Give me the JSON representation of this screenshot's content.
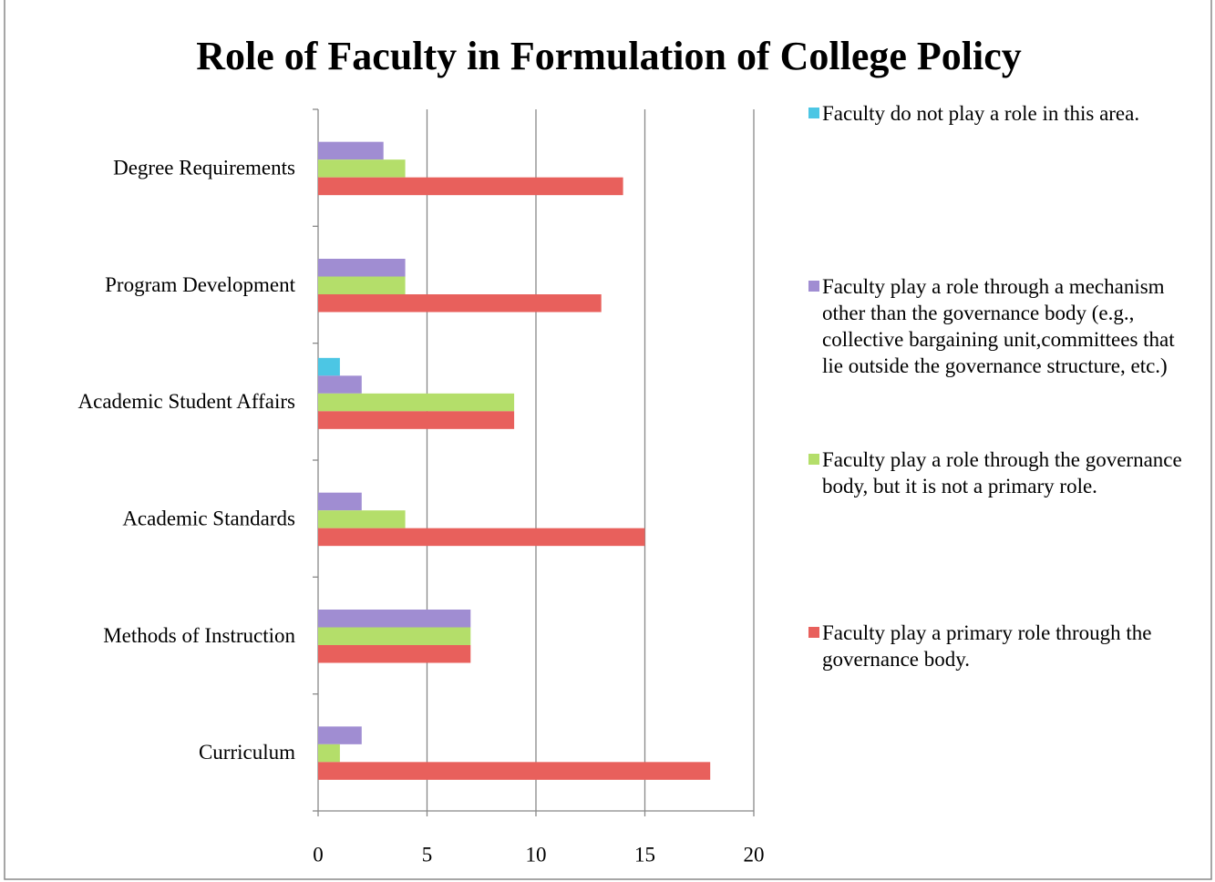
{
  "chart_data": {
    "type": "bar",
    "orientation": "horizontal",
    "title": "Role of Faculty in Formulation of College Policy",
    "categories": [
      "Curriculum",
      "Methods of Instruction",
      "Academic Standards",
      "Academic Student Affairs",
      "Program Development",
      "Degree Requirements"
    ],
    "series": [
      {
        "name": "Faculty do not play a role in this area.",
        "color": "#4cc6e4",
        "values": [
          0,
          0,
          0,
          1,
          0,
          0
        ]
      },
      {
        "name": "Faculty play a role through a mechanism other than the governance body (e.g., collective bargaining unit,committees that lie outside the governance structure, etc.)",
        "color": "#a08dd2",
        "values": [
          2,
          7,
          2,
          2,
          4,
          3
        ]
      },
      {
        "name": "Faculty play a role through the governance body, but it is not a primary role.",
        "color": "#b4de6a",
        "values": [
          1,
          7,
          4,
          9,
          4,
          4
        ]
      },
      {
        "name": "Faculty play a primary role through the governance body.",
        "color": "#e8605c",
        "values": [
          18,
          7,
          15,
          9,
          13,
          14
        ]
      }
    ],
    "xlim": [
      0,
      20
    ],
    "xticks": [
      0,
      5,
      10,
      15,
      20
    ],
    "grid": true,
    "legend": "right"
  }
}
